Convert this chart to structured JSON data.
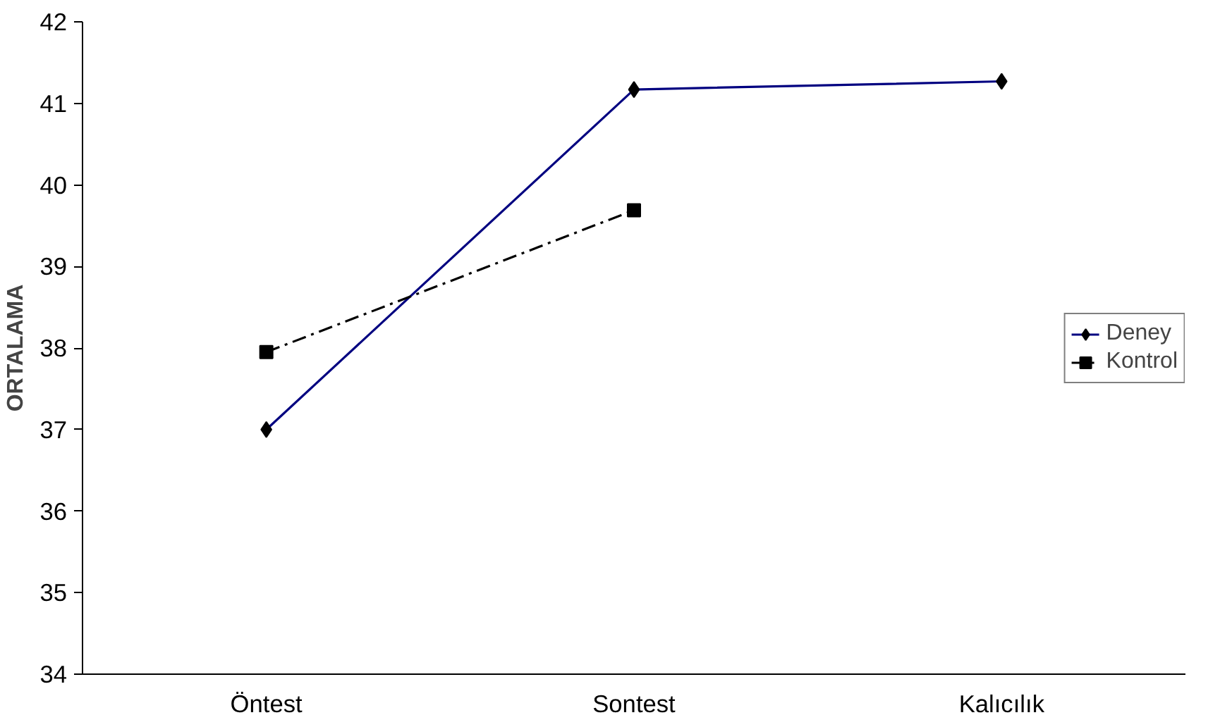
{
  "chart_data": {
    "type": "line",
    "ylabel": "ORTALAMA",
    "categories": [
      "Öntest",
      "Sontest",
      "Kalıcılık"
    ],
    "series": [
      {
        "name": "Deney",
        "color": "#000080",
        "values": [
          37.0,
          41.17,
          41.27
        ],
        "marker": "diamond",
        "line_style": "solid"
      },
      {
        "name": "Kontrol",
        "color": "#000000",
        "values": [
          37.95,
          39.69,
          null
        ],
        "marker": "square",
        "line_style": "dashed"
      }
    ],
    "ylim": [
      34,
      42
    ],
    "yticks": [
      34,
      35,
      36,
      37,
      38,
      39,
      40,
      41,
      42
    ],
    "grid": false,
    "legend": "right"
  }
}
